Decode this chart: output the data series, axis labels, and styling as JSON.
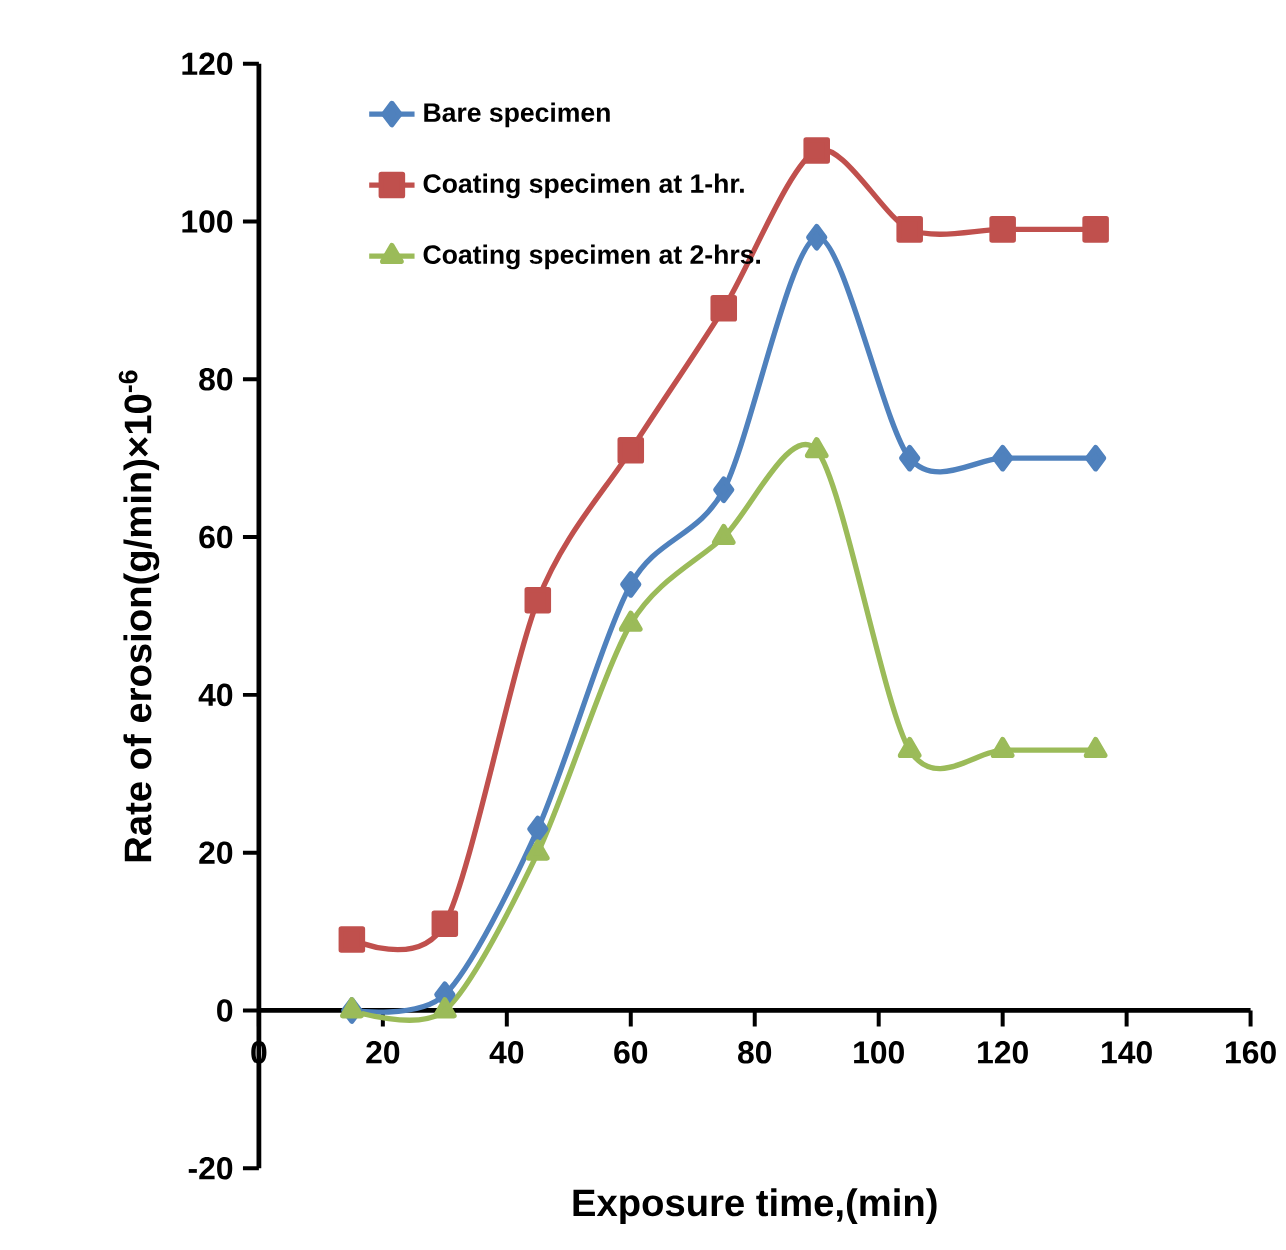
{
  "chart_data": {
    "type": "line",
    "xlabel": "Exposure time,(min)",
    "ylabel": "Rate of erosion(g/min)×10$^{-6}$",
    "x": [
      15,
      30,
      45,
      60,
      75,
      90,
      105,
      120,
      135
    ],
    "series": [
      {
        "name": "Bare specimen",
        "color": "#4f81bd",
        "marker": "diamond",
        "values": [
          0,
          2,
          23,
          54,
          66,
          98,
          70,
          70,
          70
        ]
      },
      {
        "name": "Coating specimen at 1-hr.",
        "color": "#c0504d",
        "marker": "square",
        "values": [
          9,
          11,
          52,
          71,
          89,
          109,
          99,
          99,
          99
        ]
      },
      {
        "name": "Coating specimen at 2-hrs.",
        "color": "#9bbb59",
        "marker": "triangle",
        "values": [
          0,
          0,
          20,
          49,
          60,
          71,
          33,
          33,
          33
        ]
      }
    ],
    "xlim": [
      0,
      160
    ],
    "xticks": [
      0,
      20,
      40,
      60,
      80,
      100,
      120,
      140,
      160
    ],
    "ylim": [
      -20,
      120
    ],
    "yticks": [
      -20,
      0,
      20,
      40,
      60,
      80,
      100,
      120
    ],
    "grid": false,
    "legend": "top left",
    "line_style": "solid"
  }
}
